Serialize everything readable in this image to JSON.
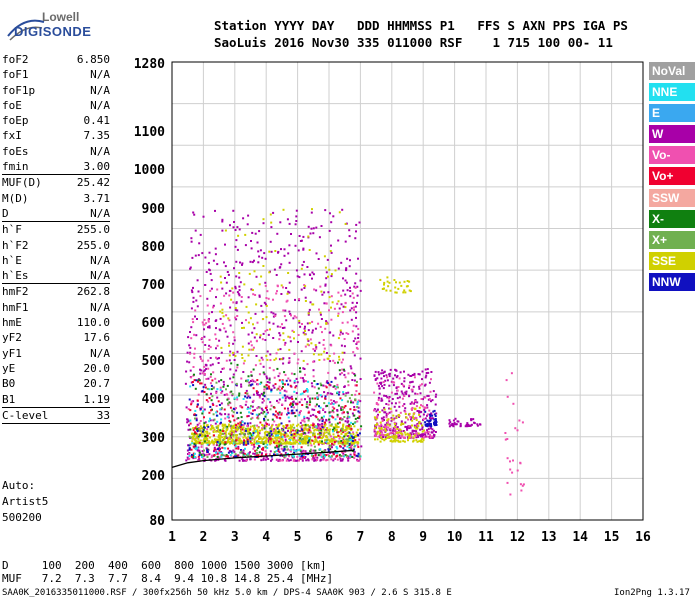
{
  "logo": {
    "line1": "Lowell",
    "line2": "DIGISONDE"
  },
  "header": {
    "line1": "Station YYYY DAY   DDD HHMMSS P1   FFS S AXN PPS IGA PS",
    "line2": "SaoLuis 2016 Nov30 335 011000 RSF    1 715 100 00- 11"
  },
  "params_group1": [
    {
      "key": "foF2",
      "value": "6.850"
    },
    {
      "key": "foF1",
      "value": "N/A"
    },
    {
      "key": "foF1p",
      "value": "N/A"
    },
    {
      "key": "foE",
      "value": "N/A"
    },
    {
      "key": "foEp",
      "value": "0.41"
    },
    {
      "key": "fxI",
      "value": "7.35"
    },
    {
      "key": "foEs",
      "value": "N/A"
    },
    {
      "key": "fmin",
      "value": "3.00"
    }
  ],
  "params_group2": [
    {
      "key": "MUF(D)",
      "value": "25.42"
    },
    {
      "key": "M(D)",
      "value": "3.71"
    },
    {
      "key": "D",
      "value": "N/A"
    }
  ],
  "params_group3": [
    {
      "key": "h`F",
      "value": "255.0"
    },
    {
      "key": "h`F2",
      "value": "255.0"
    },
    {
      "key": "h`E",
      "value": "N/A"
    },
    {
      "key": "h`Es",
      "value": "N/A"
    }
  ],
  "params_group4": [
    {
      "key": "hmF2",
      "value": "262.8"
    },
    {
      "key": "hmF1",
      "value": "N/A"
    },
    {
      "key": "hmE",
      "value": "110.0"
    },
    {
      "key": "yF2",
      "value": "17.6"
    },
    {
      "key": "yF1",
      "value": "N/A"
    },
    {
      "key": "yE",
      "value": "20.0"
    },
    {
      "key": "B0",
      "value": "20.7"
    },
    {
      "key": "B1",
      "value": "1.19"
    }
  ],
  "params_group5": [
    {
      "key": "C-level",
      "value": "33"
    }
  ],
  "auto": {
    "line1": "Auto:",
    "line2": "Artist5",
    "line3": "500200"
  },
  "legend": [
    {
      "label": "NoVal",
      "color": "#a0a0a0"
    },
    {
      "label": "NNE",
      "color": "#22e0f0"
    },
    {
      "label": "E",
      "color": "#3aa8f0"
    },
    {
      "label": "W",
      "color": "#a800a8"
    },
    {
      "label": "Vo-",
      "color": "#f050b0"
    },
    {
      "label": "Vo+",
      "color": "#f00030"
    },
    {
      "label": "SSW",
      "color": "#f4a8a0"
    },
    {
      "label": "X-",
      "color": "#108010"
    },
    {
      "label": "X+",
      "color": "#70b050"
    },
    {
      "label": "SSE",
      "color": "#d0d000"
    },
    {
      "label": "NNW",
      "color": "#1010c0"
    }
  ],
  "bottom": {
    "d_row": "D     100  200  400  600  800 1000 1500 3000 [km]",
    "muf_row": "MUF   7.2  7.3  7.7  8.4  9.4 10.8 14.8 25.4 [MHz]"
  },
  "footer": {
    "left": "SAA0K_2016335011000.RSF / 300fx256h 50 kHz 5.0 km / DPS-4 SAA0K 903 / 2.6 S 315.8 E",
    "right": "Ion2Png 1.3.17"
  },
  "chart_data": {
    "type": "scatter",
    "x_ticks": [
      "1",
      "2",
      "3",
      "4",
      "5",
      "6",
      "7",
      "8",
      "9",
      "10",
      "11",
      "12",
      "13",
      "14",
      "15",
      "16"
    ],
    "y_ticks": [
      "80",
      "200",
      "300",
      "400",
      "500",
      "600",
      "700",
      "800",
      "900",
      "1000",
      "1100",
      "1280"
    ],
    "xlim": [
      1,
      16
    ],
    "ylim_scale": "ionogram height (km), nonlinear",
    "grid": true,
    "trace": {
      "color": "#000000",
      "points": [
        [
          1.0,
          220
        ],
        [
          1.5,
          232
        ],
        [
          2.0,
          238
        ],
        [
          3.0,
          245
        ],
        [
          4.0,
          250
        ],
        [
          5.0,
          255
        ],
        [
          6.0,
          260
        ],
        [
          6.8,
          265
        ]
      ]
    },
    "clusters": [
      {
        "color": "#a800a8",
        "x": [
          1.4,
          7.0
        ],
        "y": [
          240,
          900
        ],
        "n": 900
      },
      {
        "color": "#f050b0",
        "x": [
          1.5,
          7.0
        ],
        "y": [
          240,
          700
        ],
        "n": 450
      },
      {
        "color": "#d0d000",
        "x": [
          1.6,
          6.9
        ],
        "y": [
          285,
          335
        ],
        "n": 700
      },
      {
        "color": "#d0d000",
        "x": [
          2.5,
          6.5
        ],
        "y": [
          500,
          900
        ],
        "n": 120
      },
      {
        "color": "#108010",
        "x": [
          1.5,
          7.0
        ],
        "y": [
          250,
          500
        ],
        "n": 180
      },
      {
        "color": "#f00030",
        "x": [
          1.5,
          7.0
        ],
        "y": [
          250,
          450
        ],
        "n": 220
      },
      {
        "color": "#22e0f0",
        "x": [
          1.5,
          7.0
        ],
        "y": [
          250,
          450
        ],
        "n": 140
      },
      {
        "color": "#1010c0",
        "x": [
          1.5,
          7.0
        ],
        "y": [
          250,
          450
        ],
        "n": 120
      },
      {
        "color": "#70b050",
        "x": [
          1.5,
          7.0
        ],
        "y": [
          250,
          450
        ],
        "n": 120
      },
      {
        "color": "#a800a8",
        "x": [
          7.4,
          9.4
        ],
        "y": [
          300,
          480
        ],
        "n": 320
      },
      {
        "color": "#f050b0",
        "x": [
          7.4,
          9.3
        ],
        "y": [
          300,
          460
        ],
        "n": 140
      },
      {
        "color": "#d0d000",
        "x": [
          7.4,
          9.0
        ],
        "y": [
          290,
          380
        ],
        "n": 120
      },
      {
        "color": "#1010c0",
        "x": [
          9.0,
          9.4
        ],
        "y": [
          330,
          370
        ],
        "n": 40
      },
      {
        "color": "#a800a8",
        "x": [
          9.8,
          10.8
        ],
        "y": [
          330,
          350
        ],
        "n": 40
      },
      {
        "color": "#d0d000",
        "x": [
          7.5,
          8.6
        ],
        "y": [
          680,
          720
        ],
        "n": 30
      },
      {
        "color": "#f050b0",
        "x": [
          11.5,
          12.2
        ],
        "y": [
          150,
          500
        ],
        "n": 25
      }
    ]
  }
}
